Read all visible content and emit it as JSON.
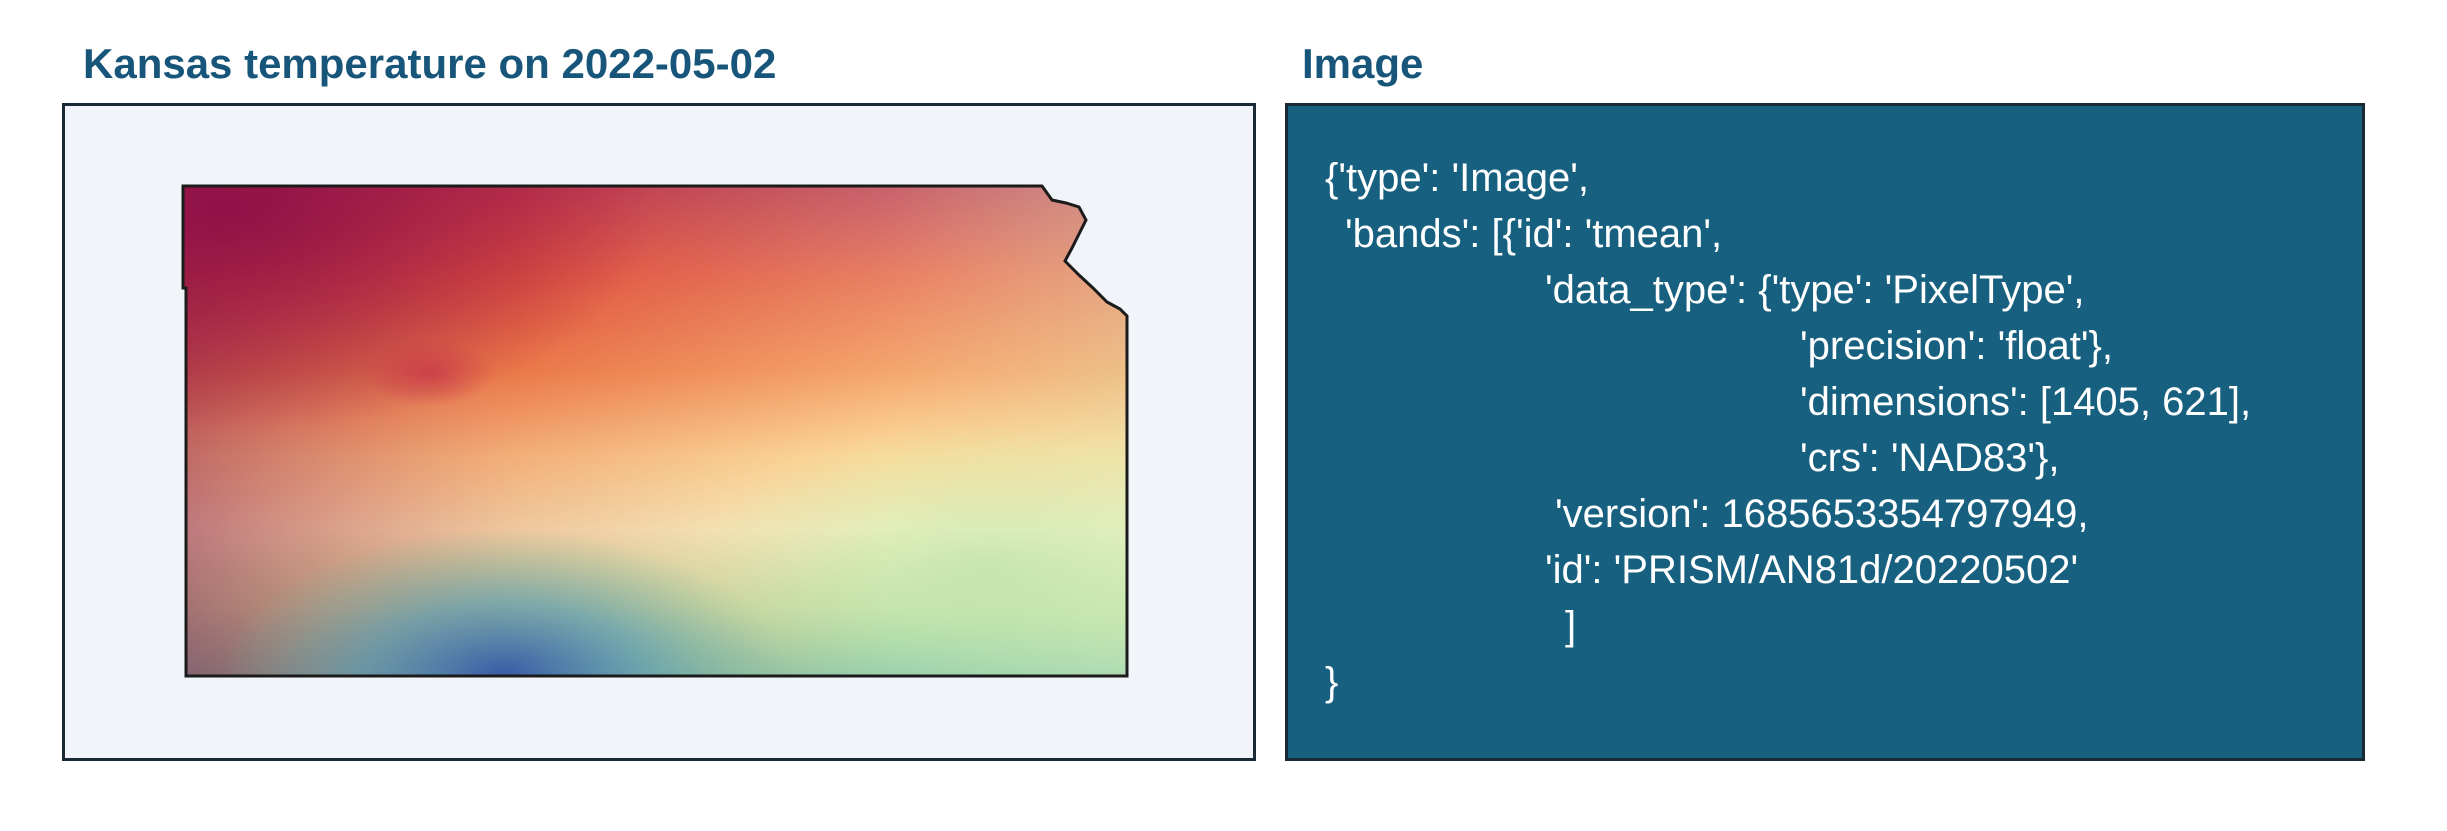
{
  "left_panel": {
    "title": "Kansas temperature on 2022-05-02",
    "colors": {
      "hot": "#9d1c4a",
      "warm": "#e5683e",
      "mild": "#fbe29d",
      "pale": "#f5f3bf",
      "cool": "#9fd6a3",
      "cold": "#3f7fbb",
      "coldest": "#3456a8"
    }
  },
  "right_panel": {
    "title": "Image",
    "lines": [
      "{'type': 'Image',",
      "'bands': [{'id': 'tmean',",
      "'data_type': {'type': 'PixelType',",
      "'precision': 'float'},",
      "'dimensions': [1405, 621],",
      "'crs': 'NAD83'},",
      "'version': 1685653354797949,",
      "'id': 'PRISM/AN81d/20220502'",
      "]",
      "}"
    ],
    "background": "#17607f"
  }
}
